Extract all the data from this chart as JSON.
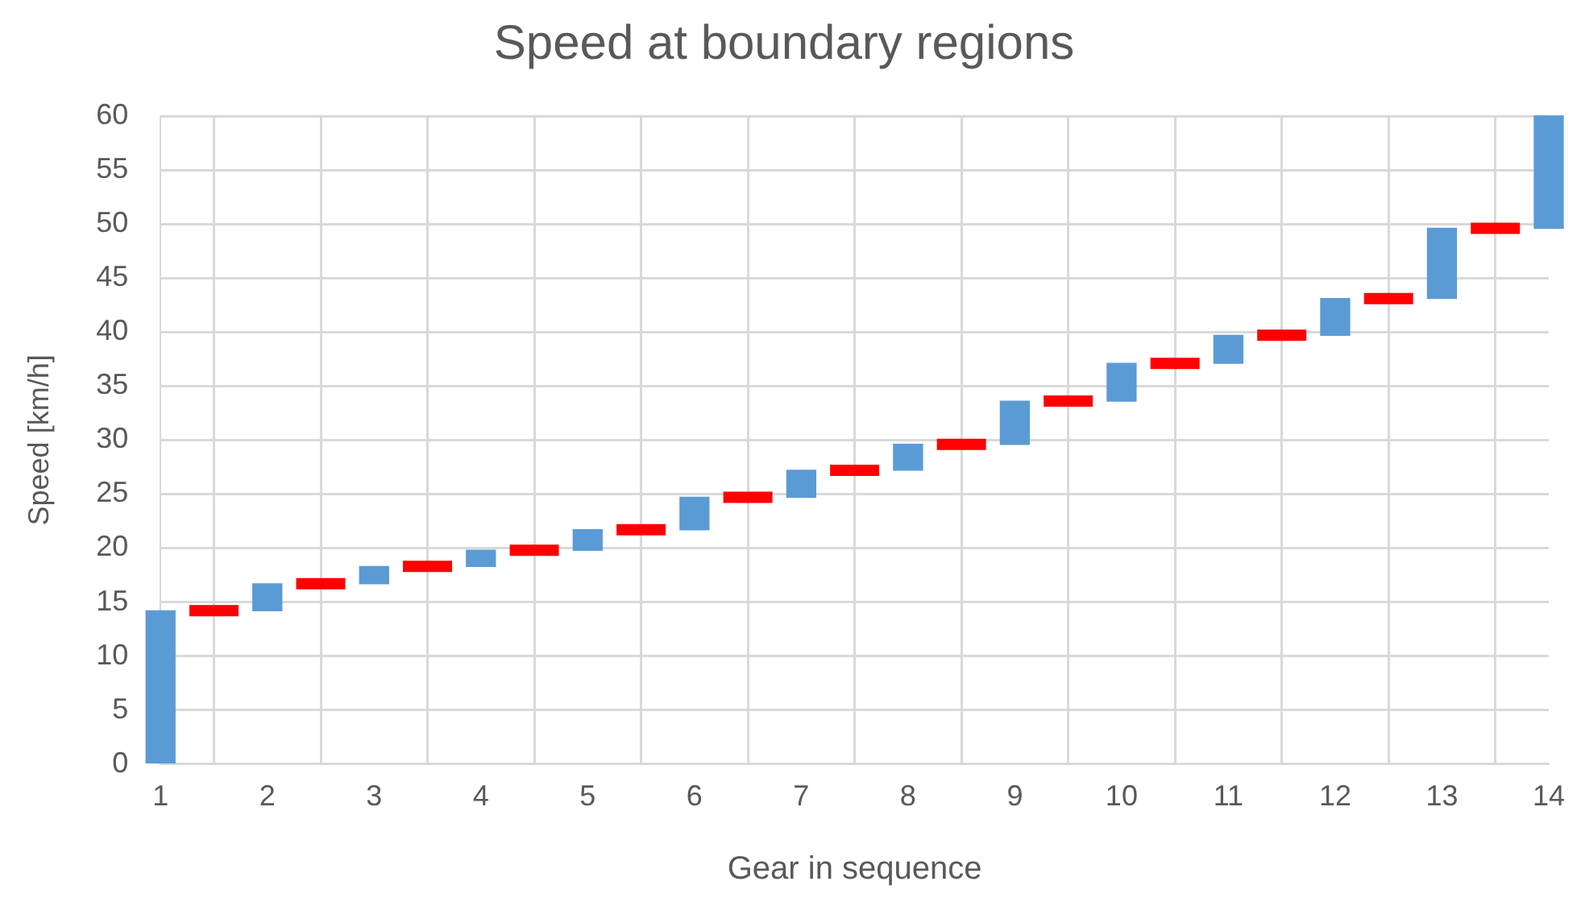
{
  "chart_data": {
    "type": "bar",
    "title": "Speed at boundary regions",
    "xlabel": "Gear in sequence",
    "ylabel": "Speed [km/h]",
    "xlim": [
      1,
      14
    ],
    "xticks": [
      1,
      2,
      3,
      4,
      5,
      6,
      7,
      8,
      9,
      10,
      11,
      12,
      13,
      14
    ],
    "ylim": [
      0,
      60
    ],
    "yticks": [
      0,
      5,
      10,
      15,
      20,
      25,
      30,
      35,
      40,
      45,
      50,
      55,
      60
    ],
    "grid": true,
    "legend": false,
    "series": [
      {
        "color": "#5b9bd5",
        "x": [
          1,
          2,
          3,
          4,
          5,
          6,
          7,
          8,
          9,
          10,
          11,
          12,
          13,
          14
        ],
        "base": [
          0,
          14.2,
          16.7,
          18.3,
          19.8,
          21.7,
          24.7,
          27.2,
          29.6,
          33.6,
          37.1,
          39.7,
          43.1,
          49.6
        ],
        "values": [
          14.2,
          2.5,
          1.6,
          1.5,
          1.9,
          3.0,
          2.5,
          2.4,
          4.0,
          3.5,
          2.6,
          3.4,
          6.5,
          10.4
        ]
      },
      {
        "type": "line",
        "color": "#ff0000",
        "marker": "none",
        "line_style": "solid",
        "x": [
          1.27,
          1.73,
          1.9,
          2.27,
          2.73,
          2.9,
          3.27,
          3.73,
          3.9,
          4.27,
          4.73,
          4.9,
          5.27,
          5.73,
          5.9,
          6.27,
          6.73,
          6.9,
          7.27,
          7.73,
          7.9,
          8.27,
          8.73,
          8.9,
          9.27,
          9.73,
          9.9,
          10.27,
          10.73,
          10.9,
          11.27,
          11.73,
          11.9,
          12.27,
          12.73,
          12.9,
          13.27,
          13.73
        ],
        "values": [
          14.2,
          14.2,
          null,
          16.7,
          16.7,
          null,
          18.3,
          18.3,
          null,
          19.8,
          19.8,
          null,
          21.7,
          21.7,
          null,
          24.7,
          24.7,
          null,
          27.2,
          27.2,
          null,
          29.6,
          29.6,
          null,
          33.6,
          33.6,
          null,
          37.1,
          37.1,
          null,
          39.7,
          39.7,
          null,
          43.1,
          43.1,
          null,
          49.6,
          49.6
        ]
      }
    ]
  }
}
